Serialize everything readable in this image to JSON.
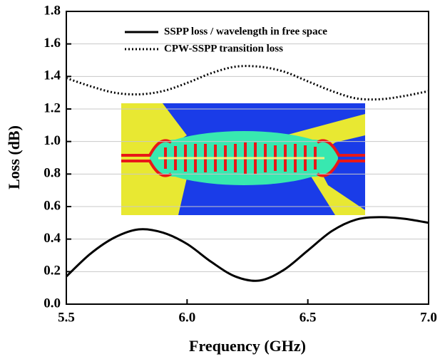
{
  "chart_data": {
    "type": "line",
    "x": [
      5.5,
      5.6,
      5.7,
      5.8,
      5.9,
      6.0,
      6.1,
      6.2,
      6.3,
      6.4,
      6.5,
      6.6,
      6.7,
      6.8,
      6.9,
      7.0
    ],
    "series": [
      {
        "name": "SSPP loss / wavelength in free space",
        "color": "#000000",
        "dash": "solid",
        "values": [
          0.17,
          0.31,
          0.41,
          0.46,
          0.44,
          0.37,
          0.26,
          0.17,
          0.145,
          0.21,
          0.33,
          0.45,
          0.52,
          0.535,
          0.525,
          0.5
        ]
      },
      {
        "name": "CPW-SSPP transition loss",
        "color": "#000000",
        "dash": "dotted",
        "values": [
          1.39,
          1.34,
          1.3,
          1.29,
          1.31,
          1.36,
          1.42,
          1.46,
          1.46,
          1.43,
          1.37,
          1.31,
          1.265,
          1.26,
          1.28,
          1.31
        ]
      }
    ],
    "xlabel": "Frequency (GHz)",
    "ylabel": "Loss (dB)",
    "xlim": [
      5.5,
      7.0
    ],
    "xticks": [
      5.5,
      {
        "value": 6,
        "label": "6.0"
      },
      6.5,
      {
        "value": 7,
        "label": "7.0"
      }
    ],
    "ylim": [
      0,
      1.8
    ],
    "yticks": [
      {
        "value": 0,
        "label": "0.0"
      },
      0.2,
      0.4,
      0.6,
      0.8,
      {
        "value": 1,
        "label": "1.0"
      },
      1.2,
      1.4,
      1.6,
      1.8
    ],
    "grid": true,
    "legend": "top"
  }
}
